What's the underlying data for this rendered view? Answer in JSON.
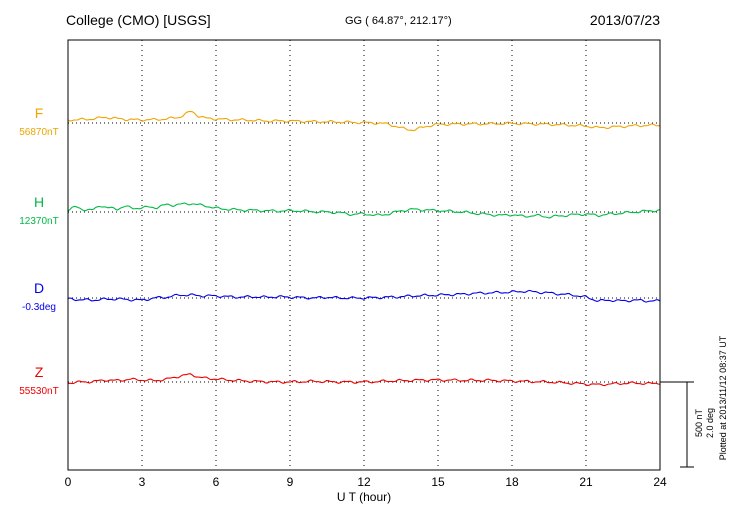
{
  "chart_data": {
    "type": "line",
    "title": "College (CMO)  [USGS]",
    "coords_label": "GG ( 64.87°, 212.17°)",
    "date_label": "2013/07/23",
    "xlabel": "U T (hour)",
    "plotted_label": "Plotted at 2013/11/12 08:37 UT",
    "x_range": [
      0,
      24
    ],
    "x_ticks": [
      0,
      3,
      6,
      9,
      12,
      15,
      18,
      21,
      24
    ],
    "grid": "vertical-dotted-every-3h",
    "scale_bar": {
      "nT_label": "500 nT",
      "deg_label": "2.0 deg",
      "nT_value": 500,
      "deg_value": 2.0
    },
    "series": [
      {
        "name": "F",
        "baseline_label": "56870nT",
        "baseline_value": 56870,
        "unit": "nT",
        "color": "#efa400",
        "points": [
          [
            0,
            18
          ],
          [
            0.5,
            20
          ],
          [
            1,
            24
          ],
          [
            1.5,
            34
          ],
          [
            2,
            26
          ],
          [
            2.5,
            20
          ],
          [
            3,
            18
          ],
          [
            3.5,
            20
          ],
          [
            4,
            24
          ],
          [
            4.5,
            34
          ],
          [
            4.8,
            55
          ],
          [
            5,
            70
          ],
          [
            5.3,
            40
          ],
          [
            5.6,
            28
          ],
          [
            6,
            24
          ],
          [
            6.5,
            20
          ],
          [
            7,
            18
          ],
          [
            7.5,
            16
          ],
          [
            8,
            12
          ],
          [
            9,
            12
          ],
          [
            9.5,
            10
          ],
          [
            10,
            8
          ],
          [
            11,
            6
          ],
          [
            11.5,
            4
          ],
          [
            12,
            2
          ],
          [
            12.5,
            0
          ],
          [
            13,
            -6
          ],
          [
            13.5,
            -30
          ],
          [
            14,
            -42
          ],
          [
            14.5,
            -20
          ],
          [
            15,
            -8
          ],
          [
            16,
            -6
          ],
          [
            17,
            -5
          ],
          [
            18,
            -2
          ],
          [
            18.5,
            -4
          ],
          [
            19,
            -6
          ],
          [
            19.5,
            -8
          ],
          [
            20,
            -10
          ],
          [
            20.5,
            -14
          ],
          [
            21,
            -18
          ],
          [
            21.5,
            -28
          ],
          [
            22,
            -24
          ],
          [
            22.5,
            -20
          ],
          [
            23,
            -16
          ],
          [
            23.5,
            -14
          ],
          [
            24,
            -12
          ]
        ]
      },
      {
        "name": "H",
        "baseline_label": "12370nT",
        "baseline_value": 12370,
        "unit": "nT",
        "color": "#00bb44",
        "points": [
          [
            0,
            12
          ],
          [
            0.3,
            30
          ],
          [
            0.6,
            16
          ],
          [
            1,
            10
          ],
          [
            1.3,
            40
          ],
          [
            1.6,
            24
          ],
          [
            2,
            18
          ],
          [
            2.3,
            34
          ],
          [
            2.6,
            22
          ],
          [
            3,
            24
          ],
          [
            3.3,
            30
          ],
          [
            3.6,
            26
          ],
          [
            4,
            44
          ],
          [
            4.3,
            40
          ],
          [
            4.6,
            46
          ],
          [
            5,
            50
          ],
          [
            5.3,
            42
          ],
          [
            5.6,
            36
          ],
          [
            6,
            22
          ],
          [
            6.5,
            16
          ],
          [
            7,
            12
          ],
          [
            7.5,
            10
          ],
          [
            8,
            8
          ],
          [
            8.5,
            6
          ],
          [
            9,
            8
          ],
          [
            9.5,
            6
          ],
          [
            10,
            2
          ],
          [
            10.5,
            0
          ],
          [
            11,
            -4
          ],
          [
            11.5,
            -14
          ],
          [
            12,
            -10
          ],
          [
            12.5,
            -20
          ],
          [
            13,
            -12
          ],
          [
            13.5,
            8
          ],
          [
            14,
            16
          ],
          [
            14.5,
            12
          ],
          [
            15,
            8
          ],
          [
            15.5,
            4
          ],
          [
            16,
            0
          ],
          [
            16.5,
            -8
          ],
          [
            17,
            -14
          ],
          [
            17.5,
            -20
          ],
          [
            18,
            -16
          ],
          [
            18.5,
            -26
          ],
          [
            19,
            -20
          ],
          [
            19.5,
            -30
          ],
          [
            20,
            -22
          ],
          [
            20.5,
            -16
          ],
          [
            21,
            -12
          ],
          [
            21.5,
            -20
          ],
          [
            22,
            -12
          ],
          [
            22.5,
            -6
          ],
          [
            23,
            0
          ],
          [
            23.5,
            6
          ],
          [
            24,
            10
          ]
        ]
      },
      {
        "name": "D",
        "baseline_label": "-0.3deg",
        "baseline_value": -0.3,
        "unit": "deg",
        "color": "#0000ee",
        "points": [
          [
            0,
            -0.02
          ],
          [
            0.5,
            -0.04
          ],
          [
            1,
            -0.05
          ],
          [
            1.5,
            -0.03
          ],
          [
            2,
            -0.02
          ],
          [
            2.5,
            -0.04
          ],
          [
            3,
            -0.05
          ],
          [
            3.5,
            0
          ],
          [
            4,
            0.02
          ],
          [
            4.5,
            0.07
          ],
          [
            5,
            0.07
          ],
          [
            5.5,
            0.05
          ],
          [
            6,
            0.05
          ],
          [
            6.5,
            0.03
          ],
          [
            7,
            0.02
          ],
          [
            7.5,
            0.03
          ],
          [
            8,
            0.02
          ],
          [
            8.5,
            0.03
          ],
          [
            9,
            0.02
          ],
          [
            9.5,
            0.01
          ],
          [
            10,
            0
          ],
          [
            10.5,
            0.02
          ],
          [
            11,
            0
          ],
          [
            12,
            0
          ],
          [
            13,
            0.02
          ],
          [
            13.5,
            0.03
          ],
          [
            14,
            0.05
          ],
          [
            14.5,
            0.06
          ],
          [
            15,
            0.07
          ],
          [
            15.5,
            0.08
          ],
          [
            16,
            0.09
          ],
          [
            16.5,
            0.11
          ],
          [
            17,
            0.12
          ],
          [
            17.5,
            0.13
          ],
          [
            18,
            0.14
          ],
          [
            18.5,
            0.16
          ],
          [
            19,
            0.14
          ],
          [
            19.5,
            0.12
          ],
          [
            20,
            0.09
          ],
          [
            20.5,
            0.07
          ],
          [
            21,
            0.02
          ],
          [
            21.5,
            -0.07
          ],
          [
            22,
            -0.05
          ],
          [
            22.5,
            -0.07
          ],
          [
            23,
            -0.05
          ],
          [
            23.5,
            -0.07
          ],
          [
            24,
            -0.07
          ]
        ]
      },
      {
        "name": "Z",
        "baseline_label": "55530nT",
        "baseline_value": 55530,
        "unit": "nT",
        "color": "#ee0000",
        "points": [
          [
            0,
            -6
          ],
          [
            0.5,
            0
          ],
          [
            1,
            2
          ],
          [
            1.5,
            12
          ],
          [
            2,
            8
          ],
          [
            2.5,
            16
          ],
          [
            3,
            12
          ],
          [
            3.5,
            8
          ],
          [
            4,
            16
          ],
          [
            4.5,
            34
          ],
          [
            5,
            46
          ],
          [
            5.3,
            28
          ],
          [
            5.6,
            22
          ],
          [
            6,
            18
          ],
          [
            6.5,
            12
          ],
          [
            7,
            8
          ],
          [
            7.5,
            4
          ],
          [
            8,
            2
          ],
          [
            8.5,
            0
          ],
          [
            9,
            0
          ],
          [
            9.5,
            2
          ],
          [
            10,
            4
          ],
          [
            10.5,
            2
          ],
          [
            11,
            0
          ],
          [
            12,
            0
          ],
          [
            12.5,
            2
          ],
          [
            13,
            6
          ],
          [
            13.5,
            8
          ],
          [
            14,
            10
          ],
          [
            14.5,
            12
          ],
          [
            15,
            12
          ],
          [
            16,
            10
          ],
          [
            17,
            10
          ],
          [
            17.5,
            8
          ],
          [
            18,
            6
          ],
          [
            18.5,
            4
          ],
          [
            19,
            2
          ],
          [
            19.5,
            0
          ],
          [
            20,
            -4
          ],
          [
            20.5,
            -8
          ],
          [
            21,
            -12
          ],
          [
            21.5,
            -16
          ],
          [
            22,
            -12
          ],
          [
            22.5,
            -8
          ],
          [
            23,
            -6
          ],
          [
            23.5,
            -10
          ],
          [
            24,
            -6
          ]
        ]
      }
    ]
  }
}
